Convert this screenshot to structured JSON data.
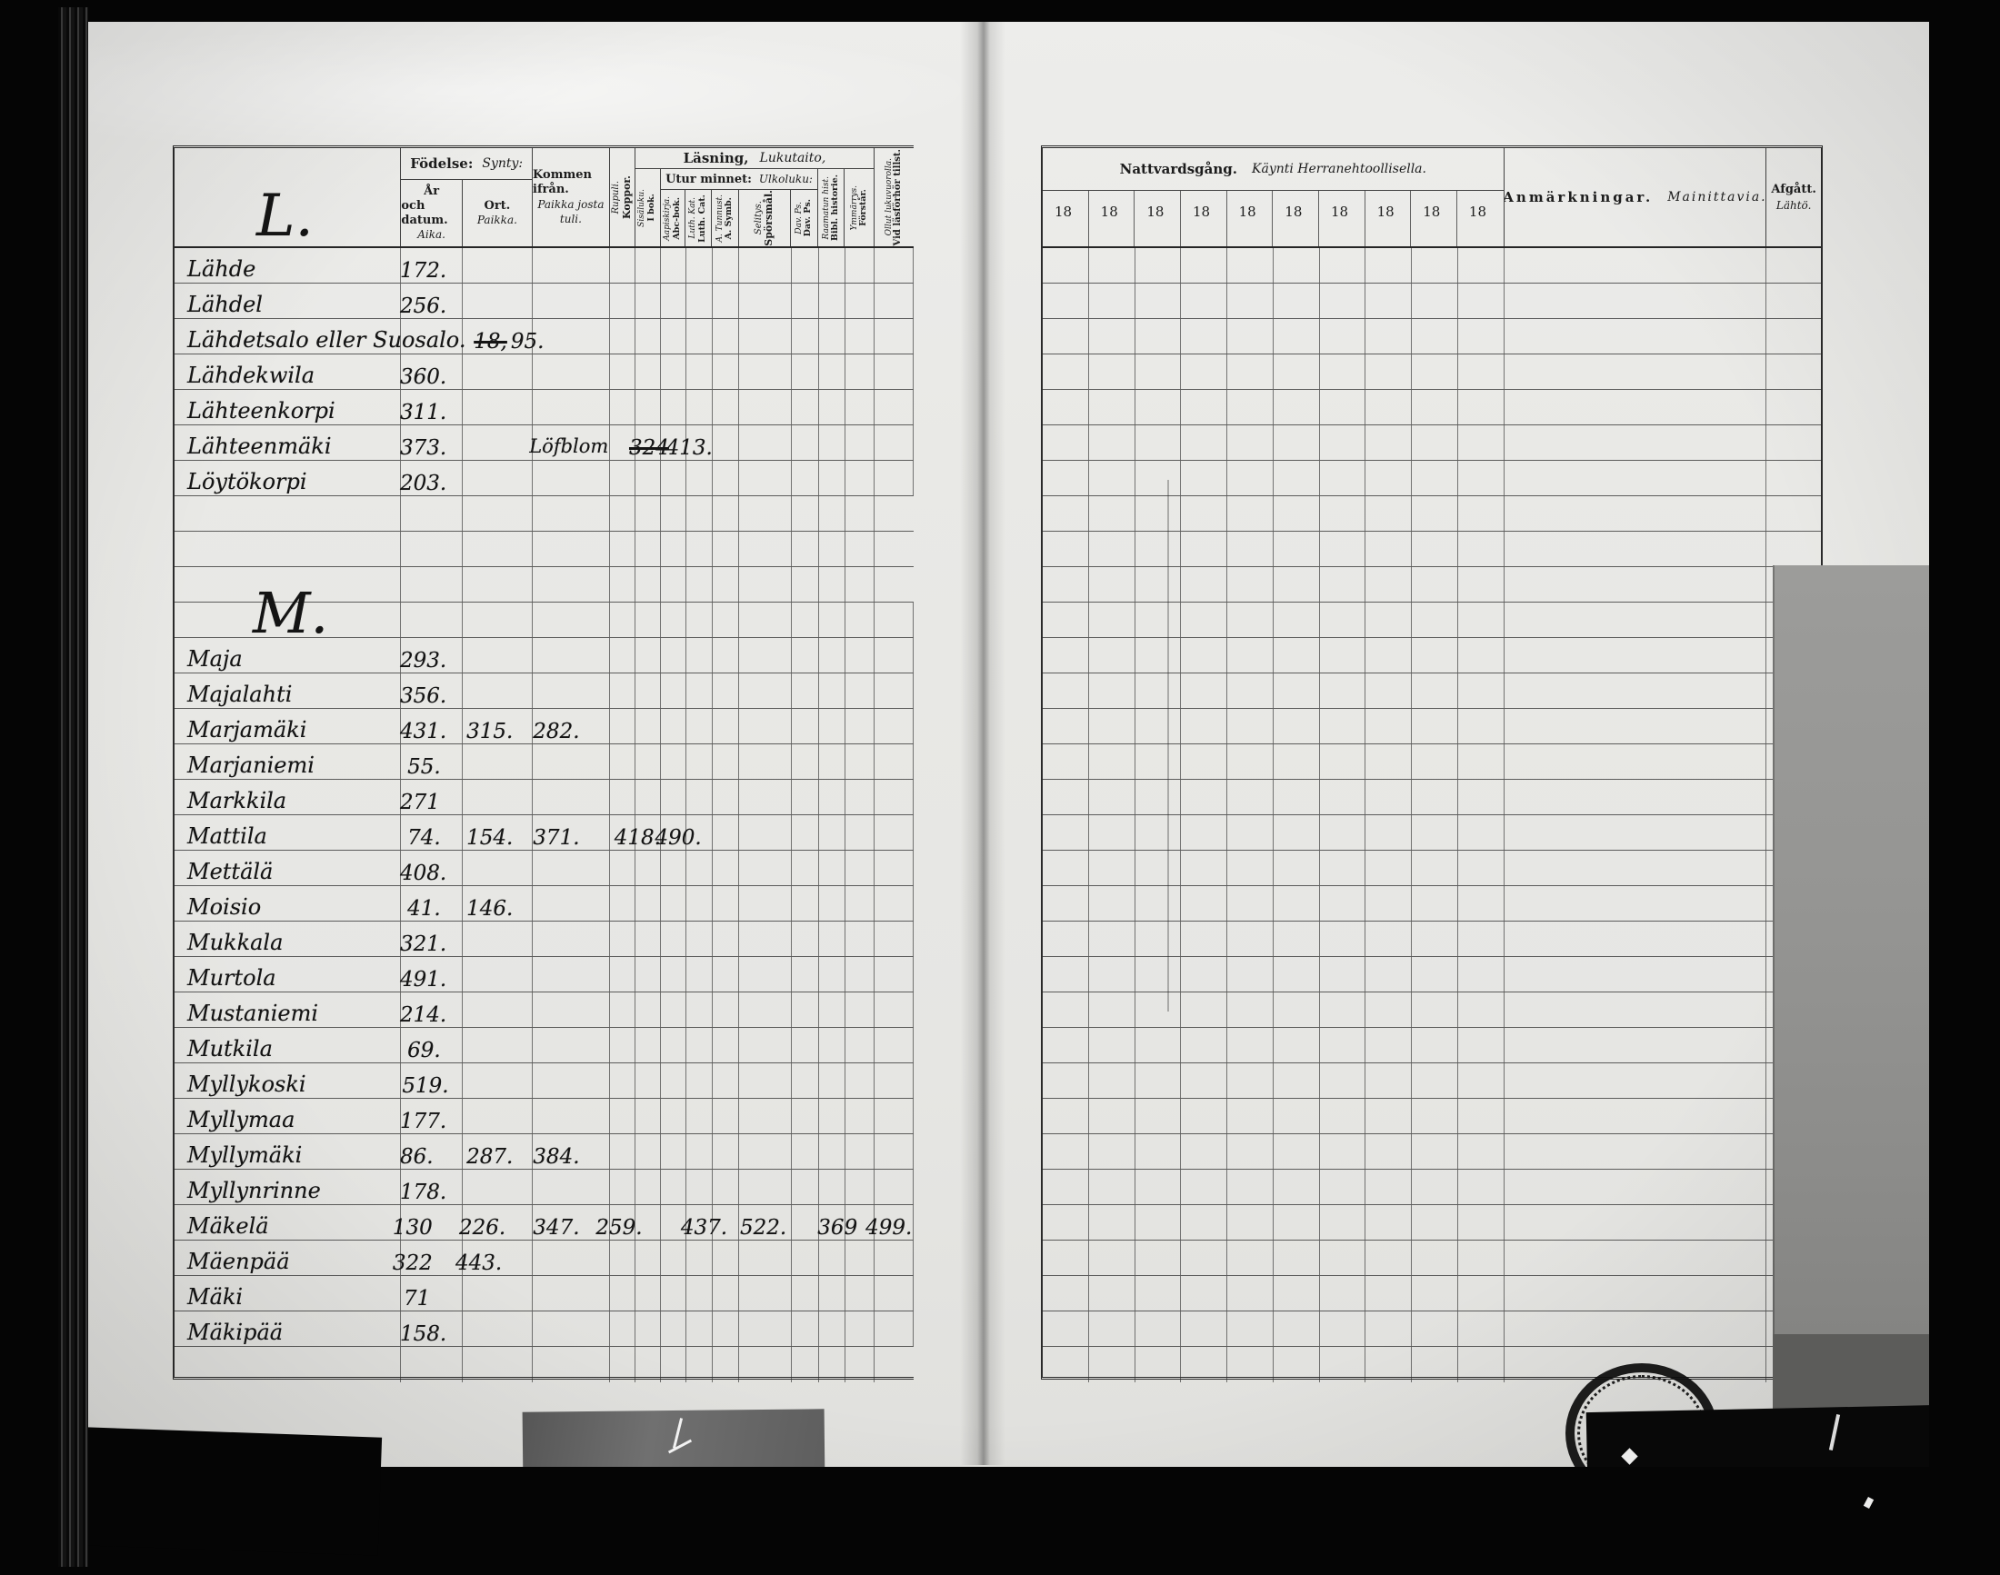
{
  "doc_type": "parish-register-spread",
  "colors": {
    "paper": "#e9e9e6",
    "ink": "#141414",
    "photo_bg": "#060606",
    "line": "#2a2a2a"
  },
  "h": {
    "section_letter": "L.",
    "fodelse_sv": "Födelse:",
    "fodelse_fi": "Synty:",
    "year_l1": "År",
    "year_l2": "och datum.",
    "year_l3": "Aika.",
    "ort_l1": "Ort.",
    "ort_l2": "Paikka.",
    "kommen_l1": "Kommen ifrån.",
    "kommen_l2": "Paikka josta",
    "kommen_l3": "tuli.",
    "koppor_sv": "Koppor.",
    "koppor_fi": "Rupuli.",
    "lasning_sv": "Läsning,",
    "lasning_fi": "Lukutaito,",
    "utur_sv": "Utur minnet:",
    "utur_fi": "Ulkoluku:",
    "ibok_sv": "I bok.",
    "ibok_fi": "Sisäluku.",
    "abc_sv": "Abc-bok.",
    "abc_fi": "Aapiskirja.",
    "luth_sv": "Luth. Cat.",
    "luth_fi": "Luth. Kat.",
    "symb_sv": "A. Symb.",
    "symb_fi": "A. Tunnust.",
    "spors_sv": "Spörsmål.",
    "spors_fi": "Selitys.",
    "dav_sv": "Dav. Ps.",
    "dav_fi": "Dav. Ps.",
    "bibl_sv": "Bibl. historie.",
    "bibl_fi": "Raamatun hist.",
    "forstar_sv": "Förstår.",
    "forstar_fi": "Ymmärrys.",
    "vid_sv": "Vid läsförhör tillst.",
    "vid_fi": "Ollut lukuvuorolla.",
    "natt_sv": "Nattvardsgång.",
    "natt_fi": "Käynti Herranehtoollisella.",
    "year_cells": [
      "18",
      "18",
      "18",
      "18",
      "18",
      "18",
      "18",
      "18",
      "18",
      "18"
    ],
    "anm_sv": "Anmärkningar.",
    "anm_fi": "Mainittavia.",
    "afg_sv": "Afgått.",
    "afg_fi": "Lähtö."
  },
  "rows": [
    {
      "type": "entry",
      "name": "Lähde",
      "ann": [
        {
          "t": "172.",
          "l": 30.5
        }
      ]
    },
    {
      "type": "entry",
      "name": "Lähdel",
      "ann": [
        {
          "t": "256.",
          "l": 30.5
        }
      ]
    },
    {
      "type": "entry",
      "name": "Lähdetsalo eller Suosalo.",
      "ann": [
        {
          "t": "18,",
          "l": 40.5,
          "strike": true
        },
        {
          "t": "95.",
          "l": 45.5
        }
      ]
    },
    {
      "type": "entry",
      "name": "Lähdekwila",
      "ann": [
        {
          "t": "360.",
          "l": 30.5
        }
      ]
    },
    {
      "type": "entry",
      "name": "Lähteenkorpi",
      "ann": [
        {
          "t": "311.",
          "l": 30.5
        }
      ]
    },
    {
      "type": "entry",
      "name": "Lähteenmäki",
      "ann": [
        {
          "t": "373.",
          "l": 30.5
        },
        {
          "t": "Löfblom",
          "l": 48,
          "script": true
        },
        {
          "t": "324",
          "l": 61.5,
          "strike": true
        },
        {
          "t": "413.",
          "l": 66.5
        }
      ]
    },
    {
      "type": "entry",
      "name": "Löytökorpi",
      "ann": [
        {
          "t": "203.",
          "l": 30.5
        }
      ]
    },
    {
      "type": "empty"
    },
    {
      "type": "empty"
    },
    {
      "type": "empty"
    },
    {
      "type": "section",
      "letter": "M."
    },
    {
      "type": "entry",
      "name": "Maja",
      "ann": [
        {
          "t": "293.",
          "l": 30.5
        }
      ]
    },
    {
      "type": "entry",
      "name": "Majalahti",
      "ann": [
        {
          "t": "356.",
          "l": 30.5
        }
      ]
    },
    {
      "type": "entry",
      "name": "Marjamäki",
      "ann": [
        {
          "t": "431.",
          "l": 30.5
        },
        {
          "t": "315.",
          "l": 39.5
        },
        {
          "t": "282.",
          "l": 48.5
        }
      ]
    },
    {
      "type": "entry",
      "name": "Marjaniemi",
      "ann": [
        {
          "t": "55.",
          "l": 31.5
        }
      ]
    },
    {
      "type": "entry",
      "name": "Markkila",
      "ann": [
        {
          "t": "271",
          "l": 30.5
        }
      ]
    },
    {
      "type": "entry",
      "name": "Mattila",
      "ann": [
        {
          "t": "74.",
          "l": 31.5
        },
        {
          "t": "154.",
          "l": 39.5
        },
        {
          "t": "371.",
          "l": 48.5
        },
        {
          "t": "418.",
          "l": 59.5
        },
        {
          "t": "490.",
          "l": 65
        }
      ]
    },
    {
      "type": "entry",
      "name": "Mettälä",
      "ann": [
        {
          "t": "408.",
          "l": 30.5
        }
      ]
    },
    {
      "type": "entry",
      "name": "Moisio",
      "ann": [
        {
          "t": "41.",
          "l": 31.5
        },
        {
          "t": "146.",
          "l": 39.5
        }
      ]
    },
    {
      "type": "entry",
      "name": "Mukkala",
      "ann": [
        {
          "t": "321.",
          "l": 30.5
        }
      ]
    },
    {
      "type": "entry",
      "name": "Murtola",
      "ann": [
        {
          "t": "491.",
          "l": 30.5
        }
      ]
    },
    {
      "type": "entry",
      "name": "Mustaniemi",
      "ann": [
        {
          "t": "214.",
          "l": 30.5
        }
      ]
    },
    {
      "type": "entry",
      "name": "Mutkila",
      "ann": [
        {
          "t": "69.",
          "l": 31.5
        }
      ]
    },
    {
      "type": "entry",
      "name": "Myllykoski",
      "ann": [
        {
          "t": "519.",
          "l": 30.8
        }
      ]
    },
    {
      "type": "entry",
      "name": "Myllymaa",
      "ann": [
        {
          "t": "177.",
          "l": 30.5
        }
      ]
    },
    {
      "type": "entry",
      "name": "Myllymäki",
      "ann": [
        {
          "t": "86.",
          "l": 30.5
        },
        {
          "t": "287.",
          "l": 39.5
        },
        {
          "t": "384.",
          "l": 48.5
        }
      ]
    },
    {
      "type": "entry",
      "name": "Myllynrinne",
      "ann": [
        {
          "t": "178.",
          "l": 30.5
        }
      ]
    },
    {
      "type": "entry",
      "name": "Mäkelä",
      "ann": [
        {
          "t": "130",
          "l": 29.5
        },
        {
          "t": "226.",
          "l": 38.5
        },
        {
          "t": "347.",
          "l": 48.5
        },
        {
          "t": "259.",
          "l": 57
        },
        {
          "t": "437.",
          "l": 68.5
        },
        {
          "t": "522.",
          "l": 76.5
        },
        {
          "t": "369",
          "l": 87
        },
        {
          "t": "499.",
          "l": 93.5
        }
      ]
    },
    {
      "type": "entry",
      "name": "Mäenpää",
      "ann": [
        {
          "t": "322",
          "l": 29.5
        },
        {
          "t": "443.",
          "l": 38
        }
      ]
    },
    {
      "type": "entry",
      "name": "Mäki",
      "ann": [
        {
          "t": "71",
          "l": 31
        }
      ]
    },
    {
      "type": "entry",
      "name": "Mäkipää",
      "ann": [
        {
          "t": "158.",
          "l": 30.5
        }
      ]
    },
    {
      "type": "empty"
    }
  ]
}
